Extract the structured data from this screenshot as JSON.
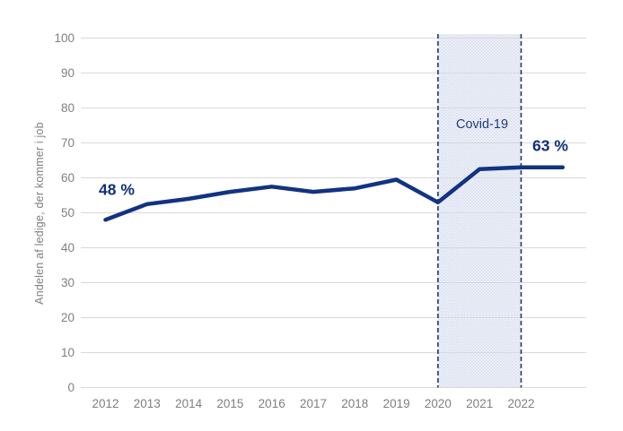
{
  "chart_data": {
    "type": "line",
    "title": "",
    "xlabel": "",
    "ylabel": "Andelen af ledige, der kommer i job",
    "ylim": [
      0,
      100
    ],
    "y_ticks": [
      0,
      10,
      20,
      30,
      40,
      50,
      60,
      70,
      80,
      90,
      100
    ],
    "x_tick_labels": [
      "2012",
      "2013",
      "2014",
      "2015",
      "2016",
      "2017",
      "2018",
      "2019",
      "2020",
      "2021",
      "2022"
    ],
    "x": [
      2012,
      2013,
      2014,
      2015,
      2016,
      2017,
      2018,
      2019,
      2020,
      2021,
      2022,
      2023
    ],
    "series": [
      {
        "name": "Andelen af ledige, der kommer i job",
        "values": [
          48,
          52.5,
          54,
          56,
          57.5,
          56,
          57,
          59.5,
          53,
          62.5,
          63,
          63
        ]
      }
    ],
    "grid": "horizontal",
    "legend": "none",
    "annotations": [
      {
        "text": "48 %",
        "x": 2012,
        "y": 48
      },
      {
        "text": "63 %",
        "x": 2023,
        "y": 63
      },
      {
        "text": "Covid-19",
        "x": 2021,
        "y": 75
      }
    ],
    "covid_band": {
      "label": "Covid-19",
      "x_start": 2020,
      "x_end": 2022,
      "border_style": "dashed"
    },
    "colors": {
      "line": "#123383",
      "annotation_text": "#10307E",
      "covid_text": "#1F3C78",
      "band_fill": "#EBEEF7",
      "band_dot": "#D2D9EC",
      "band_border": "#1F3864",
      "gridline": "#D9D9D9",
      "tick_text": "#7F7F7F",
      "axis_title_text": "#808080",
      "background": "#FFFFFF"
    }
  }
}
